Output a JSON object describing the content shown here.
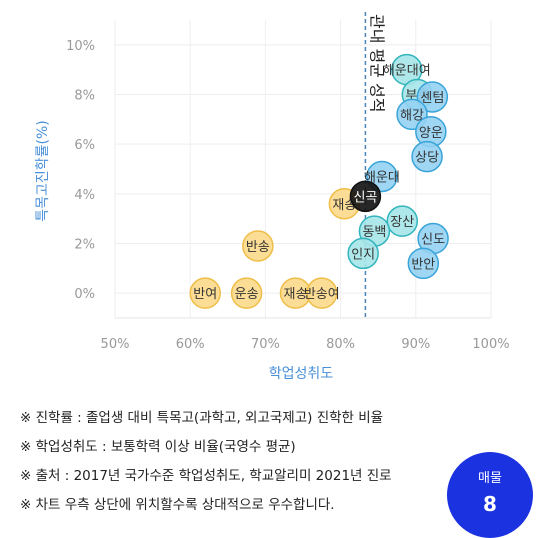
{
  "chart_data": {
    "type": "scatter",
    "xlabel": "학업성취도",
    "ylabel": "특목고진학률(%)",
    "xlim": [
      50,
      100
    ],
    "ylim": [
      -1,
      11
    ],
    "x_ticks": [
      "50%",
      "60%",
      "70%",
      "80%",
      "90%",
      "100%"
    ],
    "y_ticks": [
      "0%",
      "2%",
      "4%",
      "6%",
      "8%",
      "10%"
    ],
    "grid": true,
    "reference_line": {
      "x": 83.3,
      "label": "관내 평균 성적"
    },
    "points": [
      {
        "label": "해운대여",
        "x": 88.8,
        "y": 9.0,
        "group": "blue"
      },
      {
        "label": "부흥",
        "x": 90.2,
        "y": 8.0,
        "group": "blue"
      },
      {
        "label": "센텀",
        "x": 92.2,
        "y": 7.9,
        "group": "blue"
      },
      {
        "label": "해강",
        "x": 89.5,
        "y": 7.2,
        "group": "blue"
      },
      {
        "label": "양운",
        "x": 92.0,
        "y": 6.5,
        "group": "blue"
      },
      {
        "label": "상당",
        "x": 91.5,
        "y": 5.5,
        "group": "blue"
      },
      {
        "label": "해운대",
        "x": 85.5,
        "y": 4.7,
        "group": "blue"
      },
      {
        "label": "장산",
        "x": 88.2,
        "y": 2.9,
        "group": "blue"
      },
      {
        "label": "동백",
        "x": 84.5,
        "y": 2.5,
        "group": "blue"
      },
      {
        "label": "신도",
        "x": 92.3,
        "y": 2.2,
        "group": "blue"
      },
      {
        "label": "인지",
        "x": 83.0,
        "y": 1.6,
        "group": "blue"
      },
      {
        "label": "반안",
        "x": 91.0,
        "y": 1.2,
        "group": "blue"
      },
      {
        "label": "재송",
        "x": 80.5,
        "y": 3.6,
        "group": "yellow"
      },
      {
        "label": "신곡",
        "x": 83.3,
        "y": 3.9,
        "group": "black"
      },
      {
        "label": "반송",
        "x": 69.0,
        "y": 1.9,
        "group": "yellow"
      },
      {
        "label": "반여",
        "x": 62.0,
        "y": 0.0,
        "group": "yellow"
      },
      {
        "label": "운송",
        "x": 67.5,
        "y": 0.0,
        "group": "yellow"
      },
      {
        "label": "재송",
        "x": 74.0,
        "y": 0.0,
        "group": "yellow"
      },
      {
        "label": "반송여",
        "x": 77.5,
        "y": 0.0,
        "group": "yellow"
      }
    ],
    "colors": {
      "blue_fill": "#94d2f2",
      "blue_stroke": "#3aa4d9",
      "cyan_fill": "#a6e6e8",
      "cyan_stroke": "#33b5bd",
      "yellow_fill": "#fbd98a",
      "yellow_stroke": "#efbe49",
      "black_fill": "#111111",
      "ref_line": "#4a84b5",
      "axis_text": "#4a90d9"
    }
  },
  "notes": [
    "※ 진학률 : 졸업생 대비 특목고(과학고, 외고국제고) 진학한 비율",
    "※ 학업성취도 : 보통학력 이상 비율(국영수 평균)",
    "※ 출처 : 2017년 국가수준 학업성취도, 학교알리미 2021년 진로",
    "※ 차트 우측 상단에 위치할수록 상대적으로 우수합니다."
  ],
  "badge": {
    "label": "매물",
    "number": "8"
  }
}
